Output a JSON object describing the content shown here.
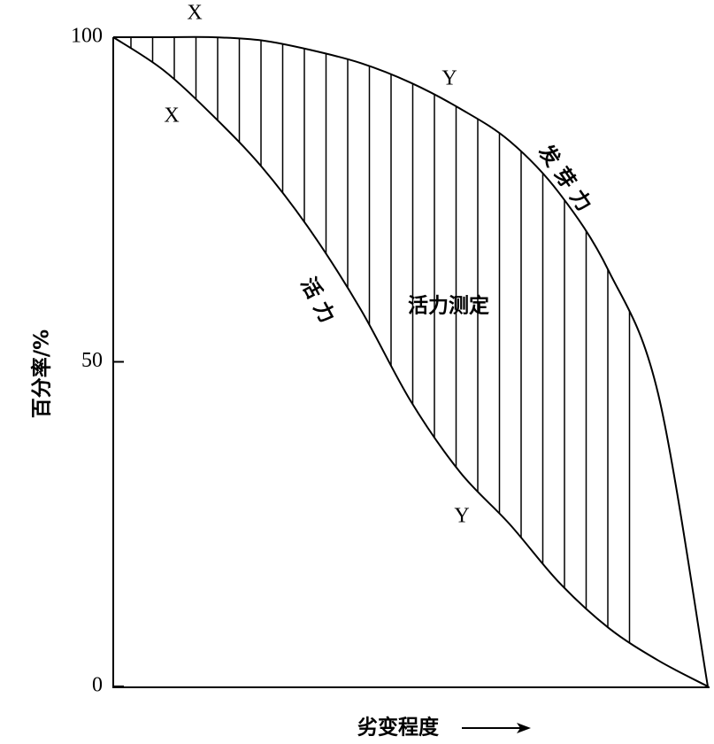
{
  "chart_data": {
    "type": "line",
    "x_label": "劣变程度",
    "y_label": "百分率/%",
    "categories": [
      null,
      null,
      null,
      null,
      null,
      null,
      null,
      null,
      null,
      null,
      null,
      null,
      null
    ],
    "series": [
      {
        "name": "发芽力",
        "color": "#000000",
        "values": [
          100,
          100,
          100,
          99.5,
          98,
          96,
          93,
          89,
          84,
          76,
          64,
          45,
          0
        ]
      },
      {
        "name": "活力",
        "color": "#000000",
        "values": [
          100,
          95,
          88,
          80,
          70,
          58,
          44,
          33,
          25,
          16,
          9,
          4,
          0
        ]
      }
    ],
    "ylim": [
      0,
      100
    ],
    "yticks": [
      0,
      50,
      100
    ],
    "annotations": [
      "X",
      "X",
      "Y",
      "Y",
      "发芽力",
      "活力",
      "活力测定"
    ]
  }
}
